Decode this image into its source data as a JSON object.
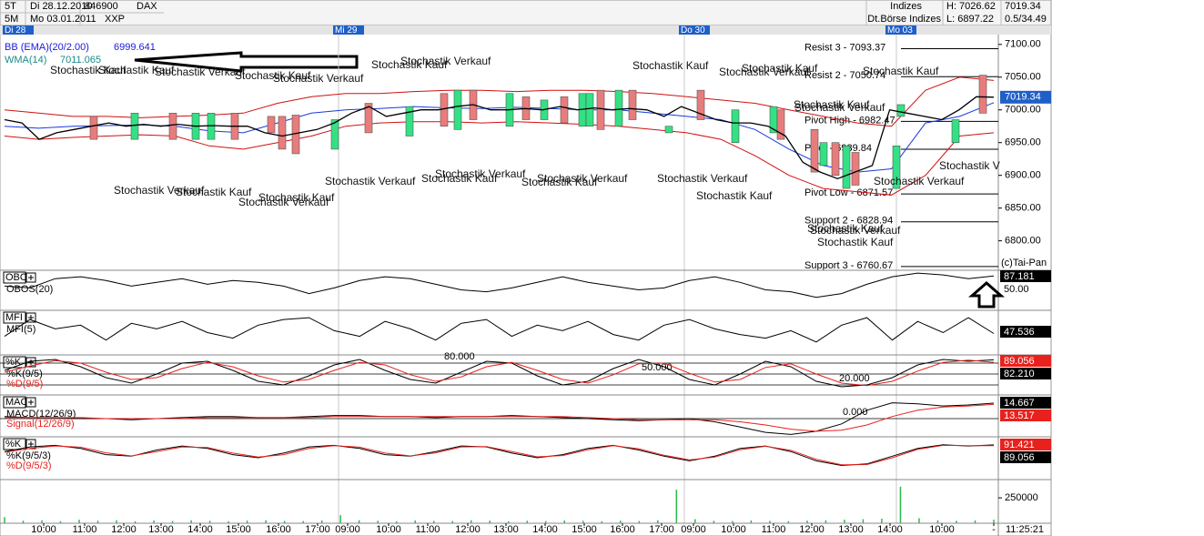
{
  "header": {
    "row1": [
      "5T",
      "Di 28.12.2010",
      "846900",
      "DAX"
    ],
    "row2": [
      "5M",
      "Mo 03.01.2011",
      "XXP"
    ],
    "exchange": [
      "Indizes",
      "Dt.Börse Indizes"
    ],
    "high": "H: 7026.62",
    "low": "L: 6897.22",
    "last": "7019.34",
    "change": "0.5/34.49"
  },
  "dates": [
    "Di 28",
    "Mi 29",
    "Do 30",
    "Mo 03"
  ],
  "main": {
    "legend": [
      {
        "name": "BB (EMA)(20/2.00)",
        "value": "6999.641",
        "color": "#1a1adc"
      },
      {
        "name": "WMA(14)",
        "value": "7011.065",
        "color": "#1a8a8a"
      }
    ],
    "ylim": [
      6755,
      7115
    ],
    "yticks": [
      {
        "value": 7100,
        "label": "7100.00"
      },
      {
        "value": 7050,
        "label": "7050.00"
      },
      {
        "value": 7000,
        "label": "7000.00"
      },
      {
        "value": 6950,
        "label": "6950.00"
      },
      {
        "value": 6900,
        "label": "6900.00"
      },
      {
        "value": 6850,
        "label": "6850.00"
      },
      {
        "value": 6800,
        "label": "6800.00"
      }
    ],
    "last": {
      "value": 7019.34,
      "label": "7019.34"
    },
    "copyright": "(c)Tai-Pan",
    "pivots": [
      {
        "label": "Resist 3 - 7093.37",
        "value": 7093.37
      },
      {
        "label": "Resist 2 - 7050.74",
        "value": 7050.74
      },
      {
        "label": "Pivot High - 6982.47",
        "value": 6982.47
      },
      {
        "label": "Pivot - 6939.84",
        "value": 6939.84
      },
      {
        "label": "Pivot Low - 6871.57",
        "value": 6871.57
      },
      {
        "label": "Support 2 - 6828.94",
        "value": 6828.94
      },
      {
        "label": "Support 3 - 6760.67",
        "value": 6760.67
      }
    ],
    "signals": [
      "Stochastik Kauf",
      "Stochastik Kauf",
      "Stochastik Verkauf",
      "Stochastik Kauf",
      "Stochastik Verkauf",
      "Stochastik Kauf",
      "Stochastik Verkauf",
      "Stochastik Kauf",
      "Stochastik Verkauf",
      "Stochastik Kauf",
      "Stochastik Kauf",
      "Stochastik Kauf",
      "Stochastik Verkauf",
      "Stochastik Verkauf",
      "Stochastik Kauf",
      "Stochastik Kauf",
      "Stochastik Verkauf",
      "Stochastik Verkauf",
      "Stochastik Verkauf",
      "Stochastik Kauf",
      "Stochastik Verkauf",
      "Stochastik Kauf",
      "Stochastik Verkauf",
      "Stochastik Kauf",
      "Stochastik Verkauf",
      "Stochastik V",
      "Stochastik Kauf",
      "Stochastik Verkauf",
      "Stochastik Kauf"
    ],
    "candles": {
      "open": [
        6990,
        6955,
        6995,
        6955,
        6955,
        6995,
        6990,
        6990,
        6992,
        6940,
        7010,
        6960,
        7025,
        6970,
        7030,
        6975,
        7020,
        6985,
        7020,
        6975,
        6975,
        7030,
        6975,
        7030,
        6965,
        7030,
        6950,
        6965,
        7000,
        6970,
        6915,
        6950,
        6880,
        6935,
        6880,
        6990,
        6950,
        7053
      ],
      "close": [
        6955,
        6995,
        6955,
        6995,
        6995,
        6955,
        6965,
        6940,
        6933,
        6985,
        6965,
        7005,
        6975,
        7030,
        6985,
        7025,
        6985,
        7015,
        6980,
        7025,
        7025,
        6970,
        7030,
        6985,
        6975,
        6985,
        7000,
        7005,
        6955,
        6905,
        6950,
        6900,
        6945,
        6885,
        6945,
        7008,
        6985,
        6995
      ]
    },
    "price": [
      6985,
      6980,
      6955,
      6965,
      6970,
      6975,
      6980,
      6975,
      6978,
      6975,
      6978,
      6975,
      6976,
      6975,
      6975,
      6965,
      6960,
      6965,
      6970,
      6980,
      6995,
      7005,
      6990,
      6995,
      7000,
      7000,
      7005,
      7008,
      7000,
      7000,
      7002,
      7000,
      7005,
      7000,
      7003,
      7000,
      7002,
      7000,
      6990,
      7005,
      6995,
      6985,
      6980,
      6980,
      6975,
      6960,
      6920,
      6905,
      6895,
      6905,
      6915,
      7000,
      6995,
      6990,
      6985,
      7000,
      7020,
      7019.34
    ],
    "wma": [
      6975,
      6972,
      6975,
      6976,
      6977,
      6975,
      6968,
      6965,
      6980,
      6995,
      7000,
      7002,
      7005,
      7003,
      7002,
      7004,
      7002,
      7000,
      7000,
      6995,
      6990,
      6985,
      6970,
      6940,
      6915,
      6905,
      6910,
      6980,
      6990,
      7011
    ],
    "bb_upper": [
      7000,
      6995,
      6990,
      6990,
      6988,
      6990,
      6992,
      6995,
      7010,
      7020,
      7025,
      7025,
      7028,
      7030,
      7030,
      7028,
      7030,
      7030,
      7028,
      7025,
      7020,
      7015,
      7010,
      7000,
      6990,
      6980,
      6975,
      7030,
      7050,
      7045
    ],
    "bb_lower": [
      6960,
      6955,
      6958,
      6960,
      6962,
      6960,
      6945,
      6940,
      6950,
      6960,
      6975,
      6980,
      6982,
      6982,
      6980,
      6982,
      6980,
      6978,
      6975,
      6970,
      6965,
      6955,
      6930,
      6900,
      6880,
      6875,
      6870,
      6900,
      6960,
      6965
    ]
  },
  "panels": [
    {
      "name": "OBOS",
      "ylim": [
        0,
        100
      ],
      "series": [
        {
          "name": "OBOS(20)",
          "color": "#000000",
          "values": [
            60,
            55,
            80,
            85,
            75,
            60,
            70,
            80,
            65,
            75,
            70,
            60,
            40,
            55,
            75,
            85,
            80,
            65,
            50,
            45,
            55,
            70,
            85,
            70,
            60,
            50,
            55,
            75,
            85,
            70,
            50,
            45,
            30,
            40,
            65,
            85,
            95,
            90,
            80,
            87.181
          ]
        }
      ],
      "value_labels": [
        {
          "label": "87.181",
          "box": "#000000"
        },
        {
          "label": "50.00",
          "box": "none"
        }
      ],
      "levels": []
    },
    {
      "name": "MFI",
      "ylim": [
        0,
        100
      ],
      "series": [
        {
          "name": "MFI(5)",
          "color": "#000000",
          "values": [
            40,
            85,
            60,
            70,
            30,
            75,
            60,
            80,
            50,
            35,
            70,
            85,
            90,
            55,
            40,
            80,
            60,
            30,
            75,
            85,
            40,
            70,
            55,
            80,
            45,
            30,
            70,
            85,
            60,
            45,
            35,
            55,
            25,
            70,
            90,
            30,
            80,
            50,
            90,
            47.536
          ]
        }
      ],
      "value_labels": [
        {
          "label": "47.536",
          "box": "#000000"
        }
      ],
      "levels": []
    },
    {
      "name": "%K",
      "ylim": [
        0,
        100
      ],
      "series": [
        {
          "name": "%K(9/5)",
          "color": "#000000",
          "values": [
            60,
            85,
            90,
            70,
            40,
            25,
            50,
            80,
            85,
            60,
            30,
            20,
            45,
            75,
            90,
            60,
            35,
            25,
            55,
            85,
            80,
            45,
            20,
            30,
            65,
            90,
            70,
            35,
            20,
            50,
            85,
            70,
            30,
            15,
            20,
            40,
            75,
            90,
            85,
            89.056
          ]
        },
        {
          "name": "%D(9/5)",
          "color": "#e8211c",
          "values": [
            55,
            72,
            87,
            80,
            55,
            35,
            40,
            65,
            82,
            70,
            45,
            28,
            35,
            60,
            82,
            75,
            48,
            30,
            42,
            70,
            82,
            60,
            35,
            25,
            48,
            78,
            80,
            52,
            28,
            35,
            68,
            78,
            50,
            25,
            18,
            30,
            58,
            82,
            88,
            82.21
          ]
        }
      ],
      "value_labels": [
        {
          "label": "89.056",
          "box": "#e8211c"
        },
        {
          "label": "82.210",
          "box": "#000000"
        }
      ],
      "levels": [
        {
          "value": 80,
          "label": "80.000"
        },
        {
          "value": 50,
          "label": "50.000"
        },
        {
          "value": 20,
          "label": "20.000"
        }
      ]
    },
    {
      "name": "MACD",
      "ylim": [
        -15.5,
        19
      ],
      "series": [
        {
          "name": "MACD(12/26/9)",
          "color": "#000000",
          "values": [
            2,
            1,
            1,
            0,
            0,
            -1,
            0,
            1,
            2,
            2,
            1,
            1,
            2,
            3,
            3,
            2,
            2,
            1,
            2,
            2,
            3,
            2,
            1,
            0,
            -1,
            -2,
            -1,
            0,
            -3,
            -8,
            -13,
            -15,
            -12,
            -5,
            8,
            15,
            14,
            12,
            13,
            14.667
          ]
        },
        {
          "name": "Signal(12/26/9)",
          "color": "#e8211c",
          "values": [
            1,
            1,
            1,
            1,
            0,
            0,
            0,
            0,
            1,
            1,
            1,
            1,
            1,
            2,
            2,
            2,
            2,
            2,
            2,
            2,
            2,
            2,
            2,
            1,
            0,
            -1,
            -1,
            -1,
            -1,
            -3,
            -6,
            -10,
            -12,
            -11,
            -6,
            2,
            8,
            11,
            12,
            13.517
          ]
        }
      ],
      "value_labels": [
        {
          "label": "14.667",
          "box": "#000000"
        },
        {
          "label": "13.517",
          "box": "#e8211c"
        }
      ],
      "levels": [
        {
          "value": 0,
          "label": "0.000"
        }
      ]
    },
    {
      "name": "%K",
      "ylim": [
        0,
        100
      ],
      "series": [
        {
          "name": "%K(9/5/3)",
          "color": "#000000",
          "values": [
            70,
            85,
            90,
            80,
            60,
            55,
            75,
            88,
            80,
            60,
            50,
            65,
            85,
            90,
            80,
            60,
            55,
            70,
            88,
            85,
            65,
            50,
            60,
            80,
            90,
            75,
            55,
            40,
            55,
            80,
            88,
            70,
            40,
            25,
            30,
            55,
            80,
            92,
            88,
            91.421
          ]
        },
        {
          "name": "%D(9/5/3)",
          "color": "#e8211c",
          "values": [
            68,
            80,
            88,
            84,
            66,
            56,
            70,
            85,
            83,
            65,
            52,
            60,
            80,
            89,
            84,
            65,
            56,
            66,
            85,
            86,
            70,
            53,
            57,
            76,
            89,
            79,
            58,
            43,
            52,
            76,
            87,
            74,
            45,
            27,
            28,
            50,
            77,
            90,
            89,
            89.056
          ]
        }
      ],
      "value_labels": [
        {
          "label": "91.421",
          "box": "#e8211c"
        },
        {
          "label": "89.056",
          "box": "#000000"
        }
      ],
      "levels": []
    }
  ],
  "volume": {
    "ylim": [
      0,
      430000
    ],
    "yticks": [
      250000
    ],
    "color": "#2db84d",
    "values": [
      60000,
      25000,
      30000,
      20000,
      35000,
      25000,
      30000,
      20000,
      28000,
      22000,
      30000,
      25000,
      20000,
      26000,
      30000,
      24000,
      22000,
      28000,
      80000,
      30000,
      25000,
      20000,
      28000,
      24000,
      22000,
      30000,
      26000,
      20000,
      25000,
      22000,
      28000,
      24000,
      20000,
      26000,
      22000,
      30000,
      330000,
      40000,
      25000,
      22000,
      28000,
      24000,
      20000,
      26000,
      30000,
      35000,
      40000,
      45000,
      360000,
      50000,
      30000,
      25000,
      28000,
      35000
    ]
  },
  "time_labels": [
    "10:00",
    "11:00",
    "12:00",
    "13:00",
    "14:00",
    "15:00",
    "16:00",
    "17:00",
    "09:00",
    "10:00",
    "11:00",
    "12:00",
    "13:00",
    "14:00",
    "15:00",
    "16:00",
    "17:00",
    "09:00",
    "10:00",
    "11:00",
    "12:00",
    "13:00",
    "14:00",
    "10:00",
    "-"
  ],
  "clock": "11:25:21"
}
